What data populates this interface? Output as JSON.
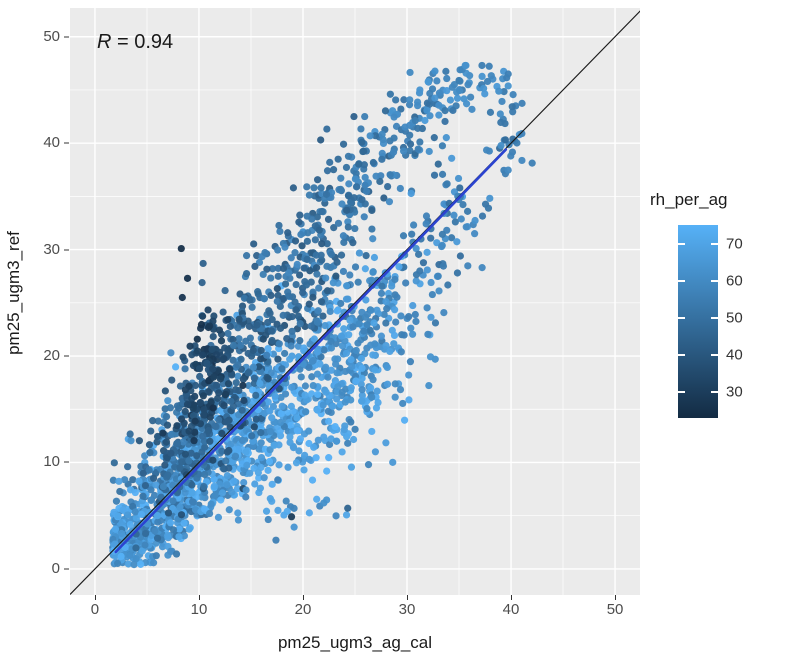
{
  "chart_data": {
    "type": "scatter",
    "title": "",
    "xlabel": "pm25_ugm3_ag_cal",
    "ylabel": "pm25_ugm3_ref",
    "x_ticks": [
      0,
      10,
      20,
      30,
      40,
      50
    ],
    "y_ticks": [
      0,
      10,
      20,
      30,
      40,
      50
    ],
    "x_minor_ticks": [
      5,
      15,
      25,
      35,
      45
    ],
    "y_minor_ticks": [
      5,
      15,
      25,
      35,
      45
    ],
    "x_range": [
      -2.4,
      52.4
    ],
    "y_range": [
      -2.45,
      52.7
    ],
    "grid": true,
    "panel_background": "#EBEBEB",
    "grid_major_color": "#FFFFFF",
    "grid_minor_color": "#FFFFFF",
    "annotation": {
      "r_symbol": "R",
      "r_rest": " = 0.94"
    },
    "color_scale": {
      "title": "rh_per_ag",
      "low_color": "#132B43",
      "high_color": "#56B1F7",
      "domain": [
        23,
        75
      ],
      "legend_ticks": [
        70,
        60,
        50,
        40,
        30
      ],
      "legend_position": "right"
    },
    "reference_line": {
      "x1": -2.4,
      "y1": -2.4,
      "x2": 52.7,
      "y2": 52.7,
      "color": "#1A1A1A",
      "width": 1.2
    },
    "regression_line": {
      "x1": 2.0,
      "y1": 1.6,
      "x2": 39.5,
      "y2": 39.4,
      "color": "#2B43D0",
      "width": 2.6
    },
    "point_radius": 3.6,
    "point_alpha": 0.95,
    "seed": 42,
    "cluster_fields": "cx,cy,sx,sy,n,rh_min,rh_max",
    "clusters": [
      [
        3.5,
        3.0,
        1.6,
        1.5,
        240,
        55,
        75
      ],
      [
        6.5,
        6.0,
        2.0,
        2.0,
        230,
        48,
        75
      ],
      [
        10.0,
        9.0,
        2.6,
        2.2,
        220,
        55,
        76
      ],
      [
        14.0,
        12.0,
        3.0,
        2.6,
        210,
        58,
        76
      ],
      [
        18.0,
        15.5,
        3.2,
        2.8,
        190,
        58,
        76
      ],
      [
        22.0,
        19.0,
        3.0,
        2.8,
        150,
        55,
        74
      ],
      [
        25.5,
        23.0,
        2.8,
        2.8,
        100,
        52,
        72
      ],
      [
        8.0,
        11.0,
        1.8,
        2.4,
        130,
        38,
        56
      ],
      [
        11.5,
        16.0,
        2.0,
        2.8,
        130,
        34,
        52
      ],
      [
        15.0,
        21.5,
        2.2,
        3.0,
        120,
        36,
        54
      ],
      [
        18.5,
        26.5,
        2.2,
        3.0,
        105,
        40,
        58
      ],
      [
        21.5,
        31.0,
        2.0,
        2.8,
        85,
        42,
        60
      ],
      [
        24.5,
        35.5,
        1.8,
        2.4,
        65,
        44,
        60
      ],
      [
        27.0,
        39.0,
        1.8,
        2.0,
        50,
        46,
        62
      ],
      [
        11.0,
        19.5,
        1.1,
        2.4,
        70,
        27,
        38
      ],
      [
        9.3,
        14.5,
        0.9,
        1.6,
        40,
        30,
        42
      ],
      [
        30.0,
        41.5,
        1.6,
        1.6,
        45,
        48,
        63
      ],
      [
        33.5,
        44.5,
        1.8,
        1.3,
        40,
        50,
        66
      ],
      [
        37.0,
        45.8,
        1.4,
        1.1,
        28,
        52,
        67
      ],
      [
        39.5,
        42.5,
        1.0,
        1.7,
        22,
        50,
        64
      ],
      [
        40.3,
        39.3,
        0.8,
        1.3,
        12,
        48,
        62
      ],
      [
        31.5,
        29.5,
        2.4,
        3.2,
        55,
        50,
        68
      ],
      [
        35.0,
        34.5,
        1.8,
        2.4,
        30,
        50,
        66
      ],
      [
        22.0,
        13.5,
        3.0,
        2.6,
        55,
        62,
        76
      ],
      [
        26.0,
        18.5,
        2.4,
        2.6,
        45,
        58,
        73
      ],
      [
        28.5,
        24.0,
        2.2,
        2.6,
        40,
        55,
        70
      ],
      [
        18.0,
        6.5,
        4.0,
        1.8,
        22,
        56,
        72
      ]
    ],
    "outlier_fields": "x,y,rh",
    "outlier_points": [
      [
        8.3,
        30.1,
        25
      ],
      [
        8.9,
        27.3,
        26
      ],
      [
        8.4,
        25.5,
        27
      ],
      [
        10.4,
        28.7,
        44
      ],
      [
        10.3,
        26.9,
        44
      ],
      [
        7.3,
        20.3,
        60
      ],
      [
        18.9,
        4.9,
        30
      ],
      [
        17.4,
        2.7,
        56
      ],
      [
        22.0,
        6.2,
        62
      ],
      [
        24.3,
        5.7,
        45
      ],
      [
        26.3,
        9.8,
        58
      ],
      [
        24.6,
        13.8,
        55
      ],
      [
        24.3,
        11.8,
        57
      ],
      [
        21.7,
        40.3,
        42
      ],
      [
        24.9,
        42.5,
        44
      ],
      [
        28.4,
        44.6,
        52
      ],
      [
        33.0,
        27.5,
        58
      ],
      [
        36.5,
        31.5,
        60
      ]
    ],
    "constraints": {
      "x_min": 1.7,
      "x_max": 43.5,
      "y_min": 0.4,
      "y_max": 47.3,
      "upper_limit_slope": 1.6,
      "upper_limit_intercept": 8
    }
  }
}
